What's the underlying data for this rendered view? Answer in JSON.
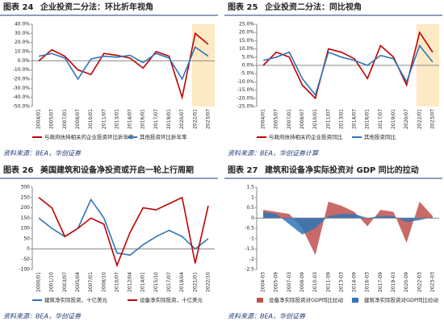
{
  "chart_data": [
    {
      "type": "line",
      "figure": "图表 24",
      "title": "企业投资二分法：环比折年视角",
      "source": "资料来源：BEA，华创证券",
      "categories": [
        "2004/01",
        "2005/07",
        "2007/01",
        "2008/07",
        "2010/01",
        "2011/07",
        "2013/01",
        "2014/07",
        "2016/01",
        "2017/07",
        "2019/01",
        "2020/07",
        "2022/01",
        "2023/07"
      ],
      "series": [
        {
          "name": "与政府扶持相关的企业投资环比折年率",
          "color": "#c00000",
          "values": [
            0,
            12,
            5,
            -10,
            -15,
            8,
            6,
            3,
            -8,
            10,
            5,
            -40,
            30,
            18
          ]
        },
        {
          "name": "其他投资环比折年率",
          "color": "#2e75b6",
          "values": [
            5,
            8,
            3,
            -20,
            2,
            5,
            4,
            6,
            -2,
            8,
            3,
            -20,
            15,
            5
          ]
        }
      ],
      "ylim": [
        -50,
        40
      ],
      "yticks": [
        {
          "value": -50,
          "label": "-50.0%"
        },
        {
          "value": -40,
          "label": "-40.0%"
        },
        {
          "value": -30,
          "label": "-30.0%"
        },
        {
          "value": -20,
          "label": "-20.0%"
        },
        {
          "value": -10,
          "label": "-10.0%"
        },
        {
          "value": 0,
          "label": "0.0%"
        },
        {
          "value": 10,
          "label": "10.0%"
        },
        {
          "value": 20,
          "label": "20.0%"
        },
        {
          "value": 30,
          "label": "30.0%"
        },
        {
          "value": 40,
          "label": "40.0%"
        }
      ]
    },
    {
      "type": "line",
      "figure": "图表 25",
      "title": "企业投资二分法：同比视角",
      "source": "资料来源：BEA，华创证券计算",
      "categories": [
        "2004/01",
        "2005/07",
        "2007/01",
        "2008/07",
        "2010/01",
        "2011/07",
        "2013/01",
        "2014/07",
        "2016/01",
        "2017/07",
        "2019/01",
        "2020/07",
        "2022/01",
        "2023/07"
      ],
      "series": [
        {
          "name": "与政府扶持相关的企业投资同比",
          "color": "#c00000",
          "values": [
            0,
            8,
            5,
            -12,
            -20,
            10,
            8,
            4,
            -8,
            12,
            5,
            -12,
            20,
            8
          ]
        },
        {
          "name": "其他投资同比",
          "color": "#2e75b6",
          "values": [
            3,
            5,
            8,
            -8,
            -18,
            8,
            5,
            3,
            0,
            6,
            4,
            -10,
            12,
            2
          ]
        }
      ],
      "ylim": [
        -25,
        25
      ],
      "yticks": [
        {
          "value": -25,
          "label": "-25.0%"
        },
        {
          "value": -20,
          "label": "-20.0%"
        },
        {
          "value": -15,
          "label": "-15.0%"
        },
        {
          "value": -10,
          "label": "-10.0%"
        },
        {
          "value": -5,
          "label": "-5.0%"
        },
        {
          "value": 0,
          "label": "0.0%"
        },
        {
          "value": 5,
          "label": "5.0%"
        },
        {
          "value": 10,
          "label": "10.0%"
        },
        {
          "value": 15,
          "label": "15.0%"
        },
        {
          "value": 20,
          "label": "20.0%"
        },
        {
          "value": 25,
          "label": "25.0%"
        }
      ]
    },
    {
      "type": "line",
      "figure": "图表 26",
      "title": "美国建筑和设备净投资或开启一轮上行周期",
      "source": "资料来源：BEA，华创证券",
      "categories": [
        "2000/01",
        "2001/10",
        "2003/07",
        "2005/04",
        "2007/01",
        "2008/10",
        "2010/07",
        "2012/04",
        "2014/01",
        "2015/10",
        "2017/07",
        "2019/04",
        "2021/01",
        "2022/10"
      ],
      "series": [
        {
          "name": "建筑净实际投资，十亿美元",
          "color": "#2e75b6",
          "values": [
            150,
            100,
            60,
            100,
            240,
            150,
            -20,
            -30,
            20,
            60,
            90,
            60,
            0,
            50
          ]
        },
        {
          "name": "设备净实际投资，十亿美元",
          "color": "#c00000",
          "values": [
            250,
            200,
            60,
            100,
            150,
            120,
            -80,
            80,
            200,
            190,
            220,
            250,
            -70,
            210
          ]
        }
      ],
      "ylim": [
        -100,
        300
      ],
      "yticks": [
        -100,
        -50,
        0,
        50,
        100,
        150,
        200,
        250,
        300
      ]
    },
    {
      "type": "area",
      "figure": "图表 27",
      "title": "建筑和设备净实际投资对 GDP 同比的拉动",
      "source": "资料来源：BEA，华创证券",
      "categories": [
        "2004-03",
        "2005-09",
        "2007-03",
        "2008-09",
        "2010-03",
        "2011-09",
        "2013-03",
        "2014-09",
        "2016-03",
        "2017-09",
        "2019-03",
        "2020-09",
        "2022-03",
        "2023-03"
      ],
      "series": [
        {
          "name": "设备净实际投资对GDP同比拉动",
          "color": "#c0504d",
          "values": [
            0.4,
            0.3,
            0.2,
            -0.5,
            -1.8,
            0.8,
            0.6,
            0.3,
            -0.4,
            0.4,
            0.3,
            -1.2,
            0.8,
            0.1
          ]
        },
        {
          "name": "建筑净实际投资对GDP同比拉动",
          "color": "#2e75b6",
          "values": [
            0.3,
            0.2,
            -0.3,
            -0.8,
            -0.5,
            0.1,
            0.2,
            0.2,
            0,
            0.1,
            0.1,
            -0.2,
            -0.1,
            0.05
          ]
        }
      ],
      "ylim": [
        -2.5,
        1.5
      ],
      "yticks": [
        -2.5,
        -2,
        -1.5,
        -1,
        -0.5,
        0,
        0.5,
        1,
        1.5
      ]
    }
  ]
}
